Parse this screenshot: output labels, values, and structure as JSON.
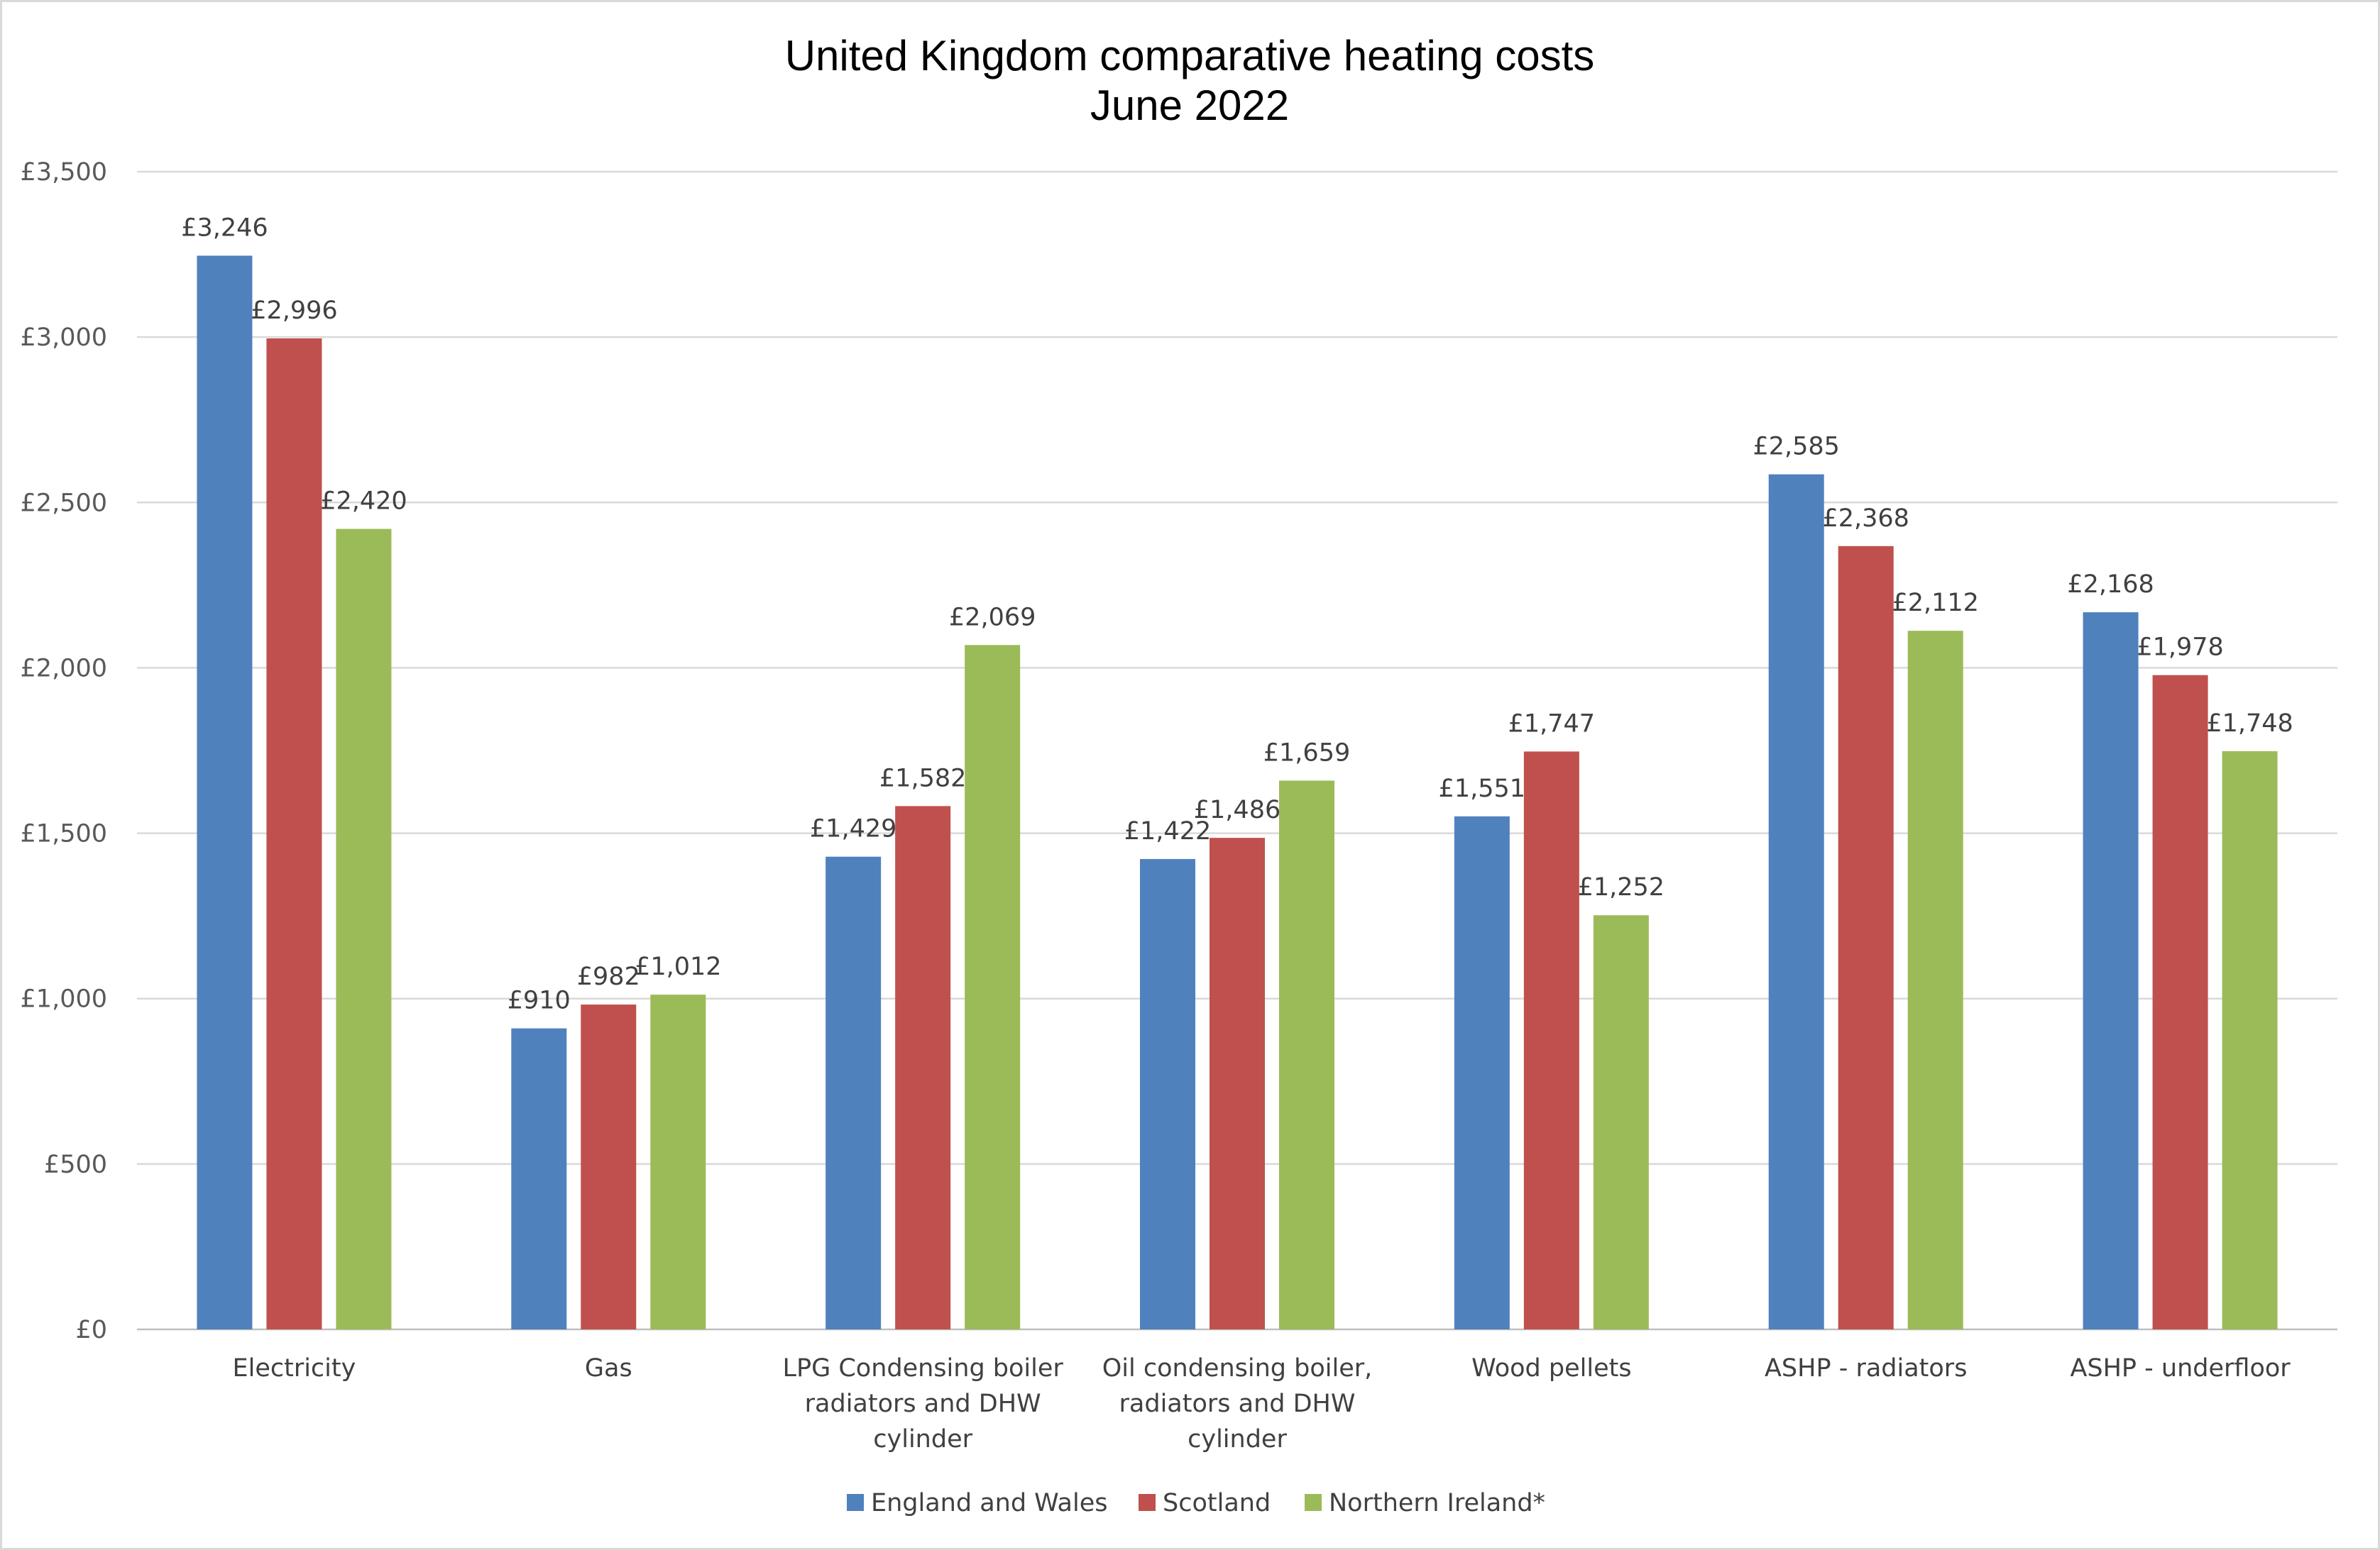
{
  "chart_data": {
    "type": "bar",
    "title_lines": [
      "United Kingdom comparative heating costs",
      "June 2022"
    ],
    "xlabel": "",
    "ylabel": "",
    "ylim": [
      0,
      3500
    ],
    "y_ticks": [
      0,
      500,
      1000,
      1500,
      2000,
      2500,
      3000,
      3500
    ],
    "y_tick_labels": [
      "£0",
      "£500",
      "£1,000",
      "£1,500",
      "£2,000",
      "£2,500",
      "£3,000",
      "£3,500"
    ],
    "grid": true,
    "legend_position": "bottom",
    "categories": [
      [
        "Electricity"
      ],
      [
        "Gas"
      ],
      [
        "LPG Condensing boiler",
        "radiators and DHW",
        "cylinder"
      ],
      [
        "Oil condensing boiler,",
        "radiators and DHW",
        "cylinder"
      ],
      [
        "Wood pellets"
      ],
      [
        "ASHP - radiators"
      ],
      [
        "ASHP -  underfloor"
      ]
    ],
    "series": [
      {
        "name": "England and Wales",
        "color": "#4f81bd",
        "values": [
          3246,
          910,
          1429,
          1422,
          1551,
          2585,
          2168
        ],
        "labels": [
          "£3,246",
          "£910",
          "£1,429",
          "£1,422",
          "£1,551",
          "£2,585",
          "£2,168"
        ]
      },
      {
        "name": "Scotland",
        "color": "#c0504d",
        "values": [
          2996,
          982,
          1582,
          1486,
          1747,
          2368,
          1978
        ],
        "labels": [
          "£2,996",
          "£982",
          "£1,582",
          "£1,486",
          "£1,747",
          "£2,368",
          "£1,978"
        ]
      },
      {
        "name": "Northern Ireland*",
        "color": "#9bbb59",
        "values": [
          2420,
          1012,
          2069,
          1659,
          1252,
          2112,
          1748
        ],
        "labels": [
          "£2,420",
          "£1,012",
          "£2,069",
          "£1,659",
          "£1,252",
          "£2,112",
          "£1,748"
        ]
      }
    ]
  }
}
